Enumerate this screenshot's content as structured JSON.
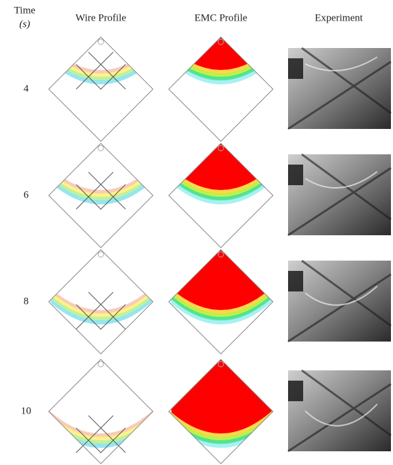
{
  "header": {
    "time_title": "Time",
    "time_unit": "(s)",
    "columns": [
      "Wire Profile",
      "EMC Profile",
      "Experiment"
    ]
  },
  "rows": [
    {
      "time": "4"
    },
    {
      "time": "6"
    },
    {
      "time": "8"
    },
    {
      "time": "10"
    }
  ]
}
